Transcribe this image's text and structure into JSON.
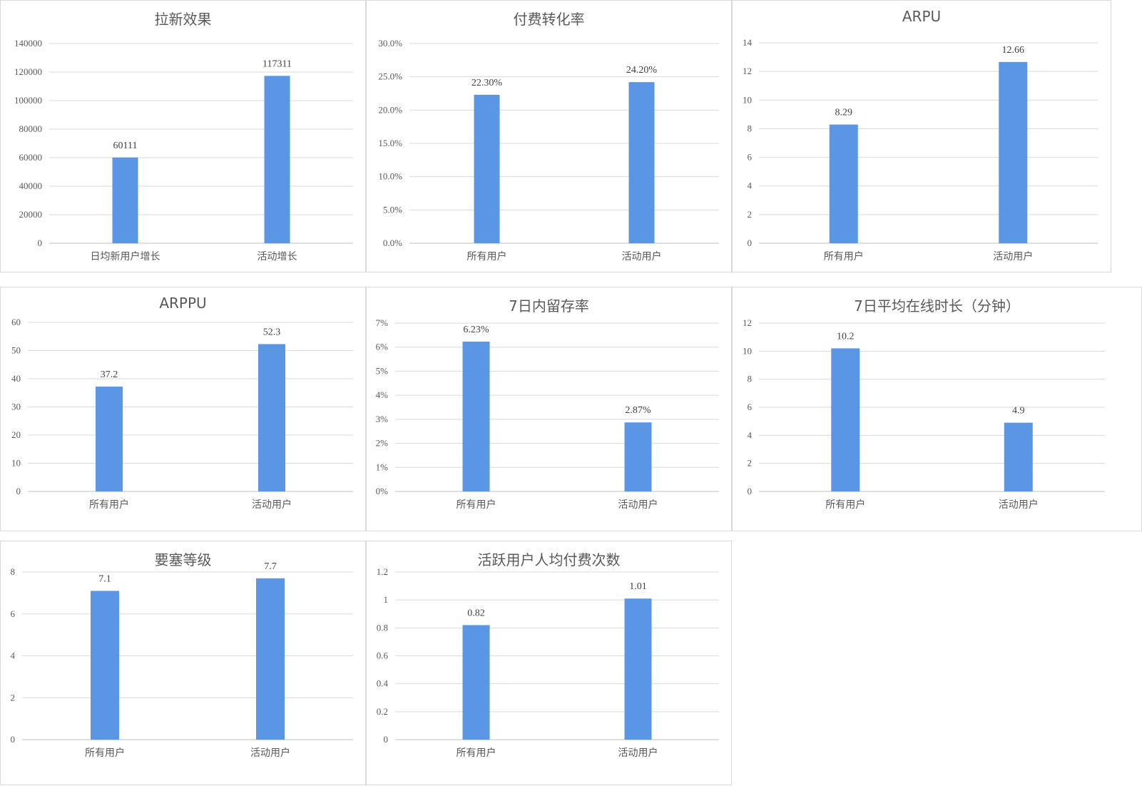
{
  "colors": {
    "bar": "#5b96e4",
    "grid": "#d9d9d9",
    "axis": "#bfbfbf"
  },
  "chart_data": [
    {
      "type": "bar",
      "title": "拉新效果",
      "categories": [
        "日均新用户增长",
        "活动增长"
      ],
      "values": [
        60111,
        117311
      ],
      "labels": [
        "60111",
        "117311"
      ],
      "ylim": [
        0,
        140000
      ],
      "yticks": [
        "0",
        "20000",
        "40000",
        "60000",
        "80000",
        "100000",
        "120000",
        "140000"
      ],
      "grid": true
    },
    {
      "type": "bar",
      "title": "付费转化率",
      "categories": [
        "所有用户",
        "活动用户"
      ],
      "values": [
        22.3,
        24.2
      ],
      "labels": [
        "22.30%",
        "24.20%"
      ],
      "ylim": [
        0,
        30
      ],
      "yticks": [
        "0.0%",
        "5.0%",
        "10.0%",
        "15.0%",
        "20.0%",
        "25.0%",
        "30.0%"
      ],
      "grid": true
    },
    {
      "type": "bar",
      "title": "ARPU",
      "categories": [
        "所有用户",
        "活动用户"
      ],
      "values": [
        8.29,
        12.66
      ],
      "labels": [
        "8.29",
        "12.66"
      ],
      "ylim": [
        0,
        14
      ],
      "yticks": [
        "0",
        "2",
        "4",
        "6",
        "8",
        "10",
        "12",
        "14"
      ],
      "grid": true
    },
    {
      "type": "bar",
      "title": "ARPPU",
      "categories": [
        "所有用户",
        "活动用户"
      ],
      "values": [
        37.2,
        52.3
      ],
      "labels": [
        "37.2",
        "52.3"
      ],
      "ylim": [
        0,
        60
      ],
      "yticks": [
        "0",
        "10",
        "20",
        "30",
        "40",
        "50",
        "60"
      ],
      "grid": true
    },
    {
      "type": "bar",
      "title": "7日内留存率",
      "categories": [
        "所有用户",
        "活动用户"
      ],
      "values": [
        6.23,
        2.87
      ],
      "labels": [
        "6.23%",
        "2.87%"
      ],
      "ylim": [
        0,
        7
      ],
      "yticks": [
        "0%",
        "1%",
        "2%",
        "3%",
        "4%",
        "5%",
        "6%",
        "7%"
      ],
      "grid": true
    },
    {
      "type": "bar",
      "title": "7日平均在线时长（分钟）",
      "categories": [
        "所有用户",
        "活动用户"
      ],
      "values": [
        10.2,
        4.9
      ],
      "labels": [
        "10.2",
        "4.9"
      ],
      "ylim": [
        0,
        12
      ],
      "yticks": [
        "0",
        "2",
        "4",
        "6",
        "8",
        "10",
        "12"
      ],
      "grid": true
    },
    {
      "type": "bar",
      "title": "要塞等级",
      "categories": [
        "所有用户",
        "活动用户"
      ],
      "values": [
        7.1,
        7.7
      ],
      "labels": [
        "7.1",
        "7.7"
      ],
      "ylim": [
        0,
        8
      ],
      "yticks": [
        "0",
        "2",
        "4",
        "6",
        "8"
      ],
      "grid": true
    },
    {
      "type": "bar",
      "title": "活跃用户人均付费次数",
      "categories": [
        "所有用户",
        "活动用户"
      ],
      "values": [
        0.82,
        1.01
      ],
      "labels": [
        "0.82",
        "1.01"
      ],
      "ylim": [
        0,
        1.2
      ],
      "yticks": [
        "0",
        "0.2",
        "0.4",
        "0.6",
        "0.8",
        "1",
        "1.2"
      ],
      "grid": true
    }
  ]
}
